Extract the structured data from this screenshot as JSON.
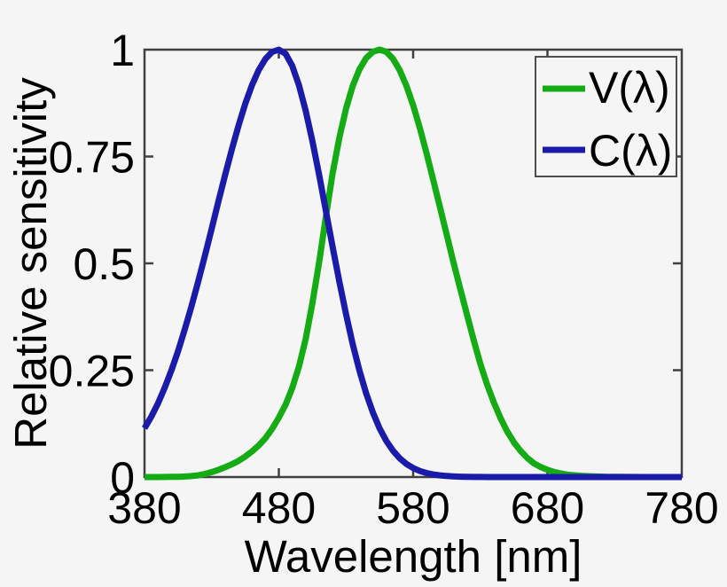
{
  "figure": {
    "background": "#f5f5f5",
    "axis_color": "#404040",
    "legend_border_color": "#4d4d4d",
    "text_color": "#000000"
  },
  "chart_data": {
    "type": "line",
    "title": "",
    "xlabel": "Wavelength [nm]",
    "ylabel": "Relative sensitivity",
    "xlim": [
      380,
      780
    ],
    "ylim": [
      0,
      1
    ],
    "xticks": [
      380,
      480,
      580,
      680,
      780
    ],
    "xtick_labels": [
      "380",
      "480",
      "580",
      "680",
      "780"
    ],
    "yticks": [
      0,
      0.25,
      0.5,
      0.75,
      1
    ],
    "ytick_labels": [
      "0",
      "0.25",
      "0.5",
      "0.75",
      "1"
    ],
    "grid": false,
    "legend_position": "top-right",
    "x": [
      380,
      385,
      390,
      395,
      400,
      405,
      410,
      415,
      420,
      425,
      430,
      435,
      440,
      445,
      450,
      455,
      460,
      465,
      470,
      475,
      480,
      485,
      490,
      495,
      500,
      505,
      510,
      515,
      520,
      525,
      530,
      535,
      540,
      545,
      550,
      555,
      560,
      565,
      570,
      575,
      580,
      585,
      590,
      595,
      600,
      605,
      610,
      615,
      620,
      625,
      630,
      635,
      640,
      645,
      650,
      655,
      660,
      665,
      670,
      675,
      680,
      685,
      690,
      695,
      700,
      705,
      710,
      715,
      720,
      725,
      730,
      735,
      740,
      745,
      750,
      755,
      760,
      765,
      770,
      775,
      780
    ],
    "series": [
      {
        "name": "V(λ)",
        "key": "v-lambda",
        "color": "#14ab14",
        "peak_nm": 555,
        "values": [
          0.0,
          0.0001,
          0.0001,
          0.0002,
          0.0004,
          0.0006,
          0.0012,
          0.0022,
          0.004,
          0.0073,
          0.0116,
          0.0168,
          0.023,
          0.0298,
          0.038,
          0.048,
          0.06,
          0.0739,
          0.091,
          0.1126,
          0.139,
          0.1693,
          0.208,
          0.2586,
          0.323,
          0.4073,
          0.503,
          0.6082,
          0.71,
          0.7932,
          0.862,
          0.9149,
          0.954,
          0.9803,
          0.995,
          1.0,
          0.995,
          0.9786,
          0.952,
          0.9154,
          0.87,
          0.8163,
          0.757,
          0.6949,
          0.631,
          0.5668,
          0.503,
          0.4412,
          0.381,
          0.321,
          0.265,
          0.217,
          0.175,
          0.1382,
          0.107,
          0.0816,
          0.061,
          0.0446,
          0.032,
          0.0232,
          0.017,
          0.0119,
          0.0082,
          0.0057,
          0.0041,
          0.0029,
          0.0021,
          0.0015,
          0.001,
          0.0007,
          0.0005,
          0.0004,
          0.0003,
          0.0002,
          0.0001,
          0.0001,
          0.0001,
          0.0,
          0.0,
          0.0,
          0.0
        ]
      },
      {
        "name": "C(λ)",
        "key": "c-lambda",
        "color": "#1b1baa",
        "peak_nm": 480,
        "values": [
          0.1141,
          0.141,
          0.1724,
          0.2085,
          0.2493,
          0.295,
          0.3454,
          0.3998,
          0.4578,
          0.5186,
          0.5813,
          0.6444,
          0.7067,
          0.7666,
          0.8226,
          0.8732,
          0.9169,
          0.9523,
          0.9785,
          0.9946,
          1.0,
          0.9904,
          0.9622,
          0.9168,
          0.857,
          0.7857,
          0.7066,
          0.6234,
          0.5394,
          0.4578,
          0.3812,
          0.3113,
          0.2494,
          0.1959,
          0.151,
          0.1141,
          0.0847,
          0.0616,
          0.0439,
          0.0307,
          0.0211,
          0.0142,
          0.0094,
          0.0061,
          0.0039,
          0.0024,
          0.0015,
          0.0009,
          0.0005,
          0.0003,
          0.0002,
          0.0001,
          0.0001,
          0.0,
          0.0,
          0.0,
          0.0,
          0.0,
          0.0,
          0.0,
          0.0,
          0.0,
          0.0,
          0.0,
          0.0,
          0.0,
          0.0,
          0.0,
          0.0,
          0.0,
          0.0,
          0.0,
          0.0,
          0.0,
          0.0,
          0.0,
          0.0,
          0.0,
          0.0,
          0.0,
          0.0
        ]
      }
    ]
  }
}
